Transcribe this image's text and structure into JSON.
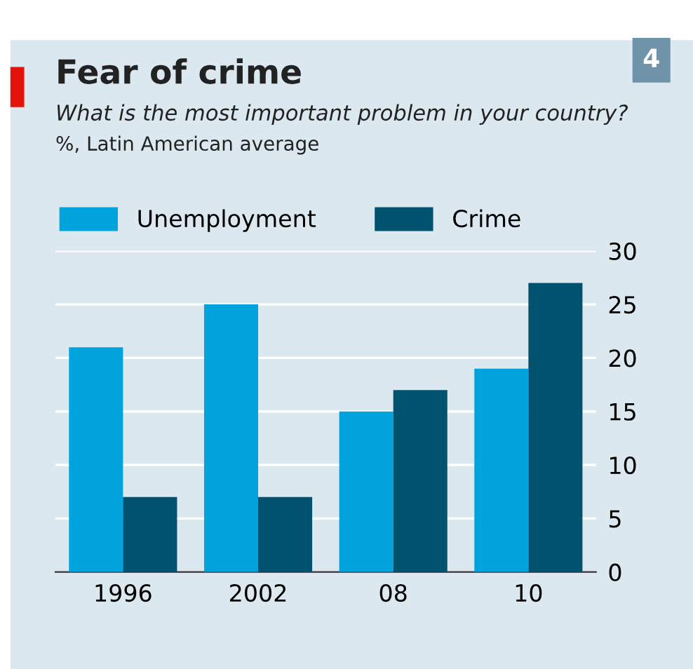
{
  "chart_data": {
    "type": "bar",
    "title": "Fear of crime",
    "subtitle": "What is the most important problem in your country?",
    "ylabel": "%, Latin American average",
    "categories": [
      "1996",
      "2002",
      "08",
      "10"
    ],
    "series": [
      {
        "name": "Unemployment",
        "color": "#00a3dc",
        "values": [
          21,
          25,
          15,
          19
        ]
      },
      {
        "name": "Crime",
        "color": "#00526e",
        "values": [
          7,
          7,
          17,
          27
        ]
      }
    ],
    "ylim": [
      0,
      30
    ],
    "yticks": [
      0,
      5,
      10,
      15,
      20,
      25,
      30
    ],
    "grid": "y",
    "legend": "top left",
    "annotations": [
      "4"
    ]
  }
}
